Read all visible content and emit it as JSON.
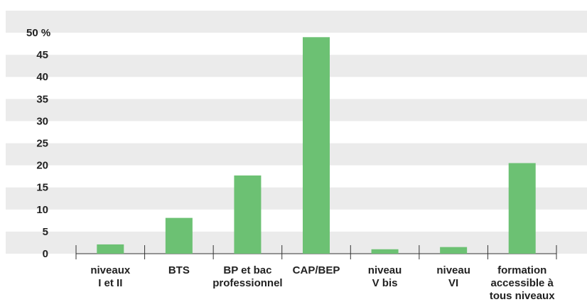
{
  "chart_data": {
    "type": "bar",
    "categories": [
      "niveaux\nI et II",
      "BTS",
      "BP et bac\nprofessionnel",
      "CAP/BEP",
      "niveau\nV bis",
      "niveau\nVI",
      "formation\naccessible à\ntous niveaux"
    ],
    "values": [
      2.1,
      8.1,
      17.7,
      49,
      1,
      1.5,
      20.5
    ],
    "color": "#6cc173",
    "ylim": [
      0,
      55
    ],
    "yticks": [
      0,
      5,
      10,
      15,
      20,
      25,
      30,
      35,
      40,
      45,
      {
        "value": 50,
        "label": "50 %"
      }
    ],
    "grid": "bands"
  }
}
